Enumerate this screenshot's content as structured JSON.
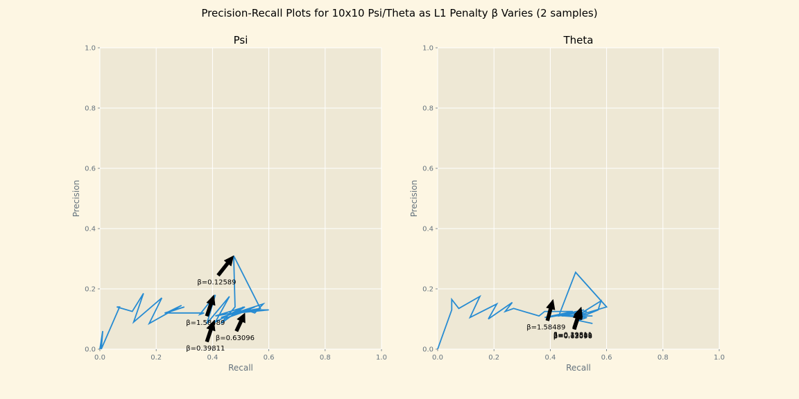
{
  "figure": {
    "suptitle": "Precision-Recall Plots for 10x10 Psi/Theta as L1 Penalty β Varies (2 samples)"
  },
  "colors": {
    "figure_bg": "#fdf6e3",
    "axes_bg": "#eee8d5",
    "grid": "#ffffff",
    "line": "#268bd2",
    "tick_text": "#65737e",
    "arrow": "#000000"
  },
  "chart_data": [
    {
      "type": "line",
      "title": "Psi",
      "xlabel": "Recall",
      "ylabel": "Precision",
      "xlim": [
        0,
        1
      ],
      "ylim": [
        0,
        1
      ],
      "xticks": [
        "0.0",
        "0.2",
        "0.4",
        "0.6",
        "0.8",
        "1.0"
      ],
      "yticks": [
        "0.0",
        "0.2",
        "0.4",
        "0.6",
        "0.8",
        "1.0"
      ],
      "grid": true,
      "series": [
        {
          "name": "Psi",
          "x": [
            0.0,
            0.01,
            0.005,
            0.07,
            0.06,
            0.115,
            0.155,
            0.12,
            0.22,
            0.175,
            0.29,
            0.235,
            0.3,
            0.23,
            0.37,
            0.355,
            0.41,
            0.38,
            0.46,
            0.41,
            0.51,
            0.43,
            0.48,
            0.475,
            0.57,
            0.41,
            0.515,
            0.48,
            0.6,
            0.485,
            0.53,
            0.44,
            0.55,
            0.43,
            0.58,
            0.55,
            0.52,
            0.6,
            0.43
          ],
          "y": [
            0.0,
            0.06,
            0.0,
            0.14,
            0.14,
            0.125,
            0.185,
            0.09,
            0.17,
            0.085,
            0.145,
            0.12,
            0.14,
            0.12,
            0.12,
            0.115,
            0.18,
            0.085,
            0.175,
            0.09,
            0.14,
            0.085,
            0.14,
            0.31,
            0.135,
            0.11,
            0.14,
            0.12,
            0.13,
            0.125,
            0.13,
            0.1,
            0.14,
            0.105,
            0.15,
            0.12,
            0.13,
            0.13,
            0.115
          ]
        }
      ],
      "annotations": [
        {
          "text": "β=0.12589",
          "x": 0.475,
          "y": 0.31,
          "text_x": 0.415,
          "text_y": 0.215
        },
        {
          "text": "β=1.58489",
          "x": 0.405,
          "y": 0.18,
          "text_x": 0.375,
          "text_y": 0.08
        },
        {
          "text": "β=0.63096",
          "x": 0.515,
          "y": 0.12,
          "text_x": 0.48,
          "text_y": 0.03
        },
        {
          "text": "β=0.39811",
          "x": 0.405,
          "y": 0.095,
          "text_x": 0.375,
          "text_y": -0.005
        }
      ]
    },
    {
      "type": "line",
      "title": "Theta",
      "xlabel": "Recall",
      "ylabel": "Precision",
      "xlim": [
        0,
        1
      ],
      "ylim": [
        0,
        1
      ],
      "xticks": [
        "0.0",
        "0.2",
        "0.4",
        "0.6",
        "0.8",
        "1.0"
      ],
      "yticks": [
        "0.0",
        "0.2",
        "0.4",
        "0.6",
        "0.8",
        "1.0"
      ],
      "grid": true,
      "series": [
        {
          "name": "Theta",
          "x": [
            0.0,
            0.05,
            0.05,
            0.075,
            0.15,
            0.115,
            0.21,
            0.18,
            0.265,
            0.24,
            0.27,
            0.36,
            0.38,
            0.48,
            0.38,
            0.48,
            0.39,
            0.52,
            0.42,
            0.53,
            0.43,
            0.49,
            0.6,
            0.51,
            0.52,
            0.58,
            0.57,
            0.53,
            0.44,
            0.55,
            0.45,
            0.53,
            0.5,
            0.55
          ],
          "y": [
            0.0,
            0.13,
            0.165,
            0.135,
            0.175,
            0.105,
            0.15,
            0.1,
            0.155,
            0.125,
            0.135,
            0.11,
            0.125,
            0.125,
            0.105,
            0.12,
            0.105,
            0.13,
            0.11,
            0.125,
            0.11,
            0.255,
            0.14,
            0.115,
            0.125,
            0.16,
            0.13,
            0.115,
            0.11,
            0.11,
            0.11,
            0.105,
            0.095,
            0.085
          ]
        }
      ],
      "annotations": [
        {
          "text": "β=1.58489",
          "x": 0.41,
          "y": 0.165,
          "text_x": 0.385,
          "text_y": 0.065
        },
        {
          "text": "β=0.39811",
          "x": 0.51,
          "y": 0.14,
          "text_x": 0.48,
          "text_y": 0.04
        },
        {
          "text": "β=0.12589",
          "x": 0.51,
          "y": 0.135,
          "text_x": 0.48,
          "text_y": 0.038
        },
        {
          "text": "β=0.63096",
          "x": 0.505,
          "y": 0.13,
          "text_x": 0.48,
          "text_y": 0.036
        }
      ]
    }
  ]
}
